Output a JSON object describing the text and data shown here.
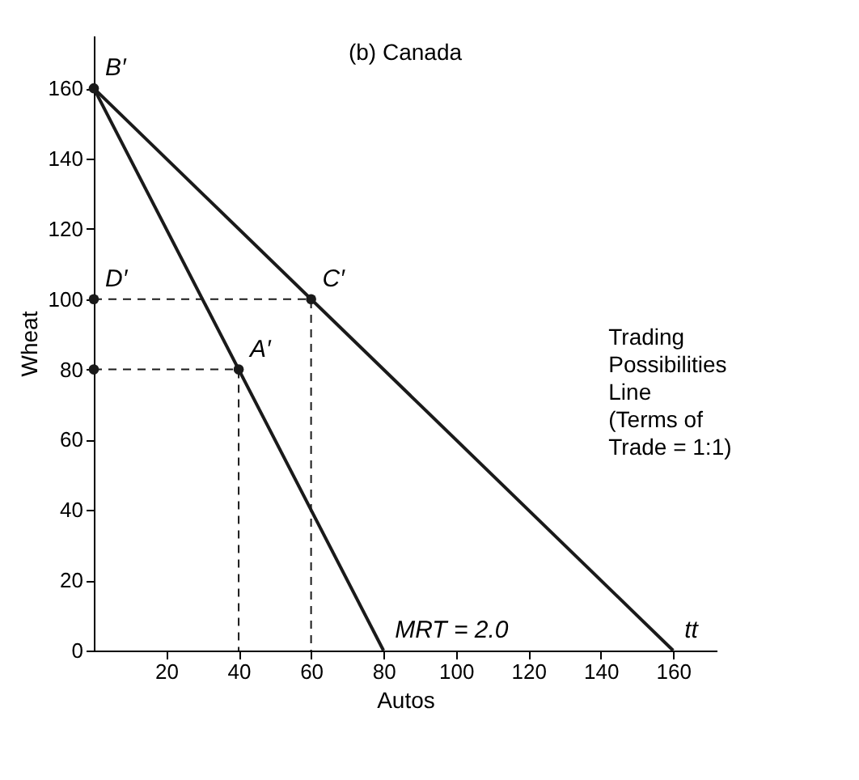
{
  "chart_data": {
    "type": "line",
    "title": "(b) Canada",
    "xlabel": "Autos",
    "ylabel": "Wheat",
    "xlim": [
      0,
      172
    ],
    "ylim": [
      0,
      175
    ],
    "xticks": [
      20,
      40,
      60,
      80,
      100,
      120,
      140,
      160
    ],
    "yticks": [
      0,
      20,
      40,
      60,
      80,
      100,
      120,
      140,
      160
    ],
    "grid": false,
    "series": [
      {
        "color": "#1a1a1a",
        "line_style": "solid",
        "x": [
          0,
          80
        ],
        "values": [
          160,
          0
        ]
      },
      {
        "name": "Trading Possibilities Line (Terms of Trade = 1:1)",
        "color": "#1a1a1a",
        "line_style": "solid",
        "x": [
          0,
          160
        ],
        "values": [
          160,
          0
        ]
      },
      {
        "color": "#1a1a1a",
        "line_style": "dashed",
        "x": [
          0,
          60,
          60
        ],
        "values": [
          100,
          100,
          0
        ]
      },
      {
        "color": "#1a1a1a",
        "line_style": "dashed",
        "x": [
          0,
          40,
          40
        ],
        "values": [
          80,
          80,
          0
        ]
      },
      {
        "type": "scatter",
        "color": "#1a1a1a",
        "marker": "circle",
        "x": [
          0,
          0,
          0,
          40,
          60
        ],
        "values": [
          160,
          100,
          80,
          80,
          100
        ]
      }
    ],
    "annotations": [
      {
        "text": "B′",
        "x": 0,
        "y": 160
      },
      {
        "text": "D′",
        "x": 0,
        "y": 100
      },
      {
        "text": "C′",
        "x": 60,
        "y": 100
      },
      {
        "text": "A′",
        "x": 40,
        "y": 80
      },
      {
        "text": "tt",
        "x": 160,
        "y": 0
      },
      {
        "text": "MRT = 2.0",
        "x": 80,
        "y": 0
      }
    ]
  }
}
